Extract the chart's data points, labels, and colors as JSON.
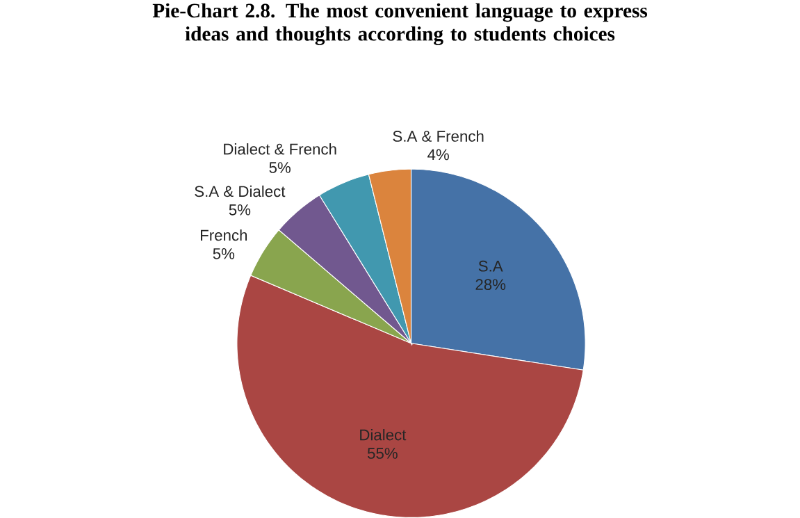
{
  "chart_data": {
    "type": "pie",
    "title": "**Pie-Chart 2.8. The most convenient language to express ideas and thoughts according to students choices**",
    "categories": [
      "S.A",
      "Dialect",
      "French",
      "S.A & Dialect",
      "Dialect & French",
      "S.A & French"
    ],
    "values": [
      28,
      55,
      5,
      5,
      5,
      4
    ],
    "value_labels": [
      "28%",
      "55%",
      "5%",
      "5%",
      "5%",
      "4%"
    ],
    "colors": [
      "#4572a7",
      "#aa4643",
      "#89a54e",
      "#71588f",
      "#4198af",
      "#db843d"
    ]
  }
}
